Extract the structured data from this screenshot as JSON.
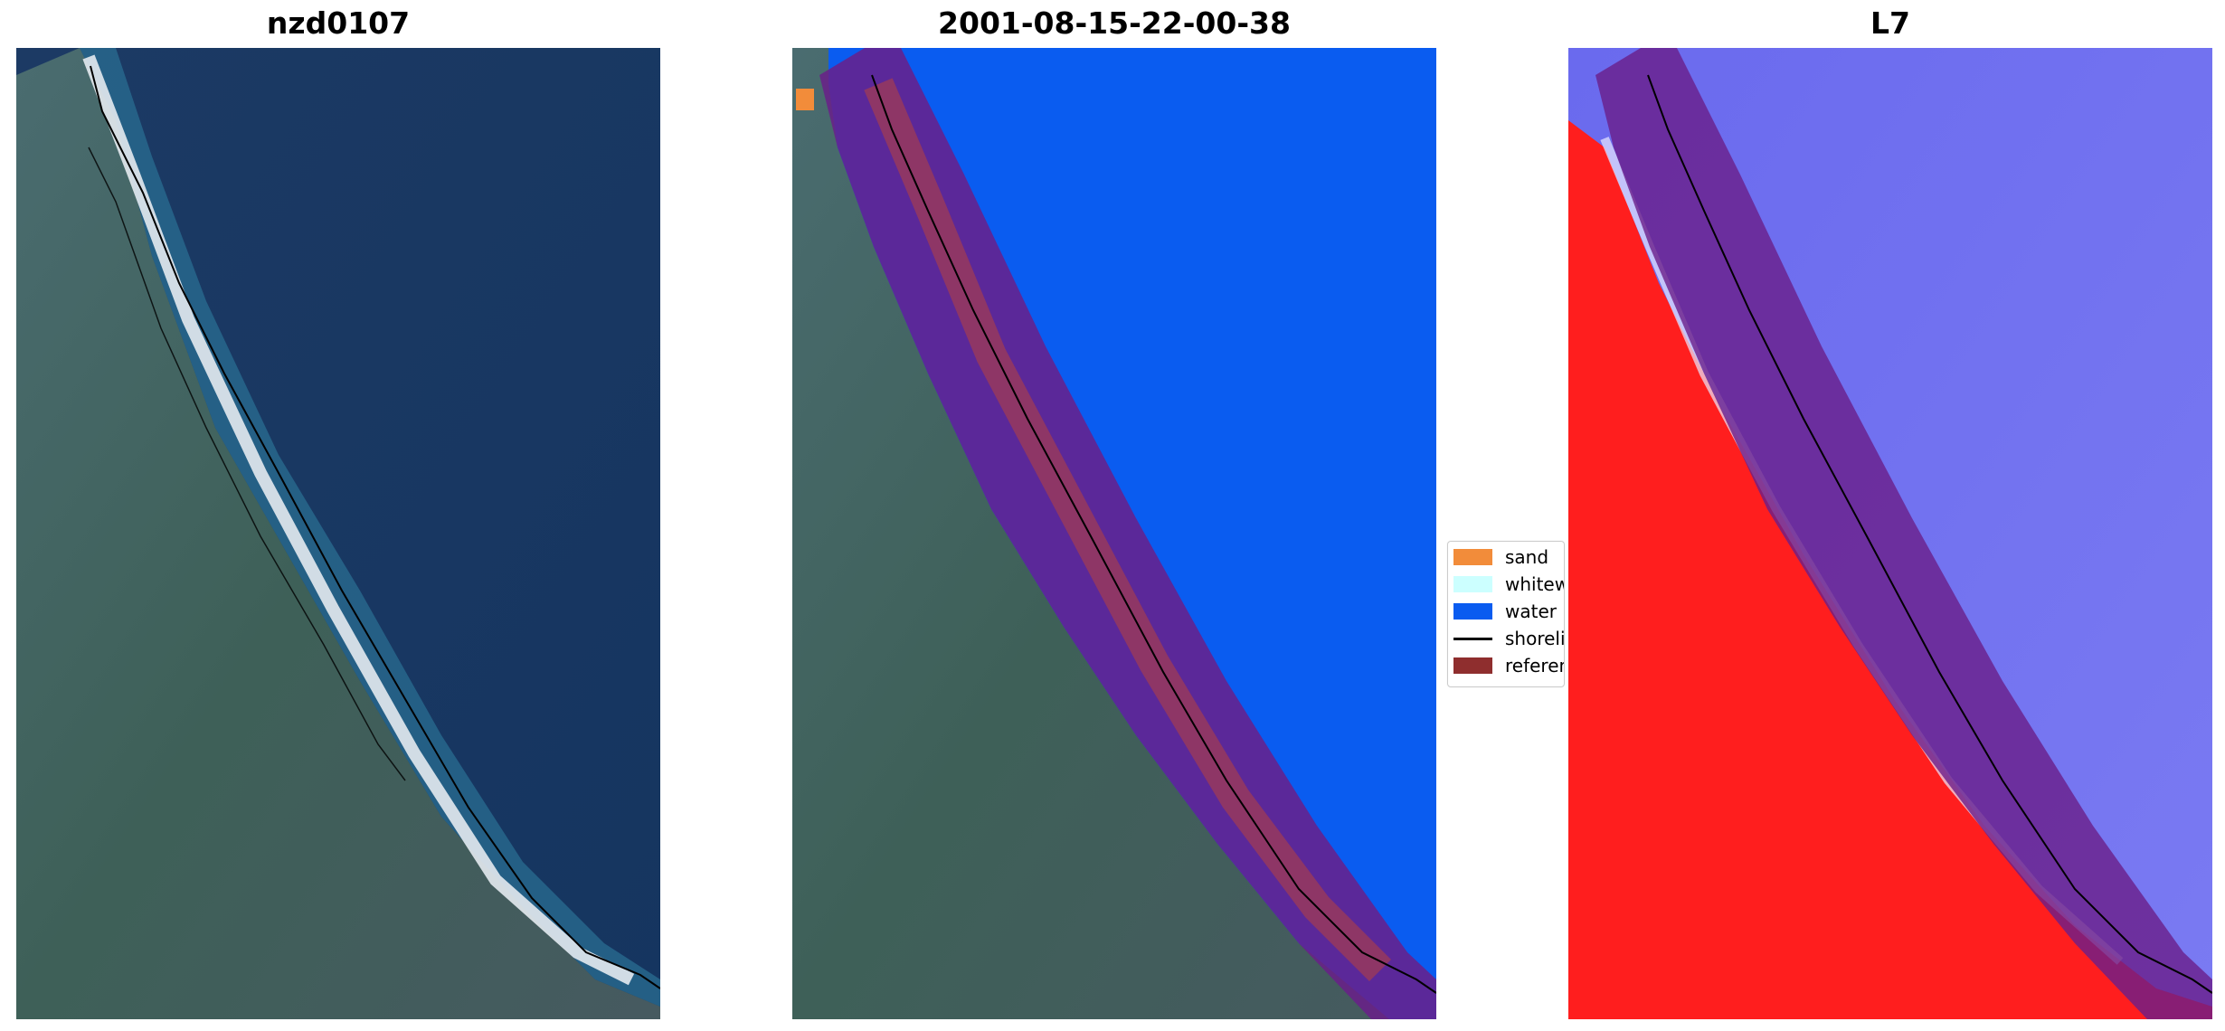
{
  "panels": [
    {
      "title": "nzd0107"
    },
    {
      "title": "2001-08-15-22-00-38"
    },
    {
      "title": "L7"
    }
  ],
  "legend": {
    "items": [
      {
        "label": "sand",
        "color": "#f28c3a"
      },
      {
        "label": "whitewater",
        "color": "#ccffff"
      },
      {
        "label": "water",
        "color": "#0a5cf0"
      },
      {
        "label": "shoreline",
        "color": "#000000",
        "kind": "line"
      },
      {
        "label": "reference shoreline buffer",
        "color": "#8f2e2e"
      }
    ]
  },
  "colors": {
    "ocean": "#1a3e6e",
    "land": "#3a5c5c",
    "beach": "#e8ecf0",
    "water_class": "#0a5cf0",
    "buffer_overlay": "#6a1e8a",
    "index_land": "#ff1e1e",
    "index_water": "#6e6ef0"
  }
}
